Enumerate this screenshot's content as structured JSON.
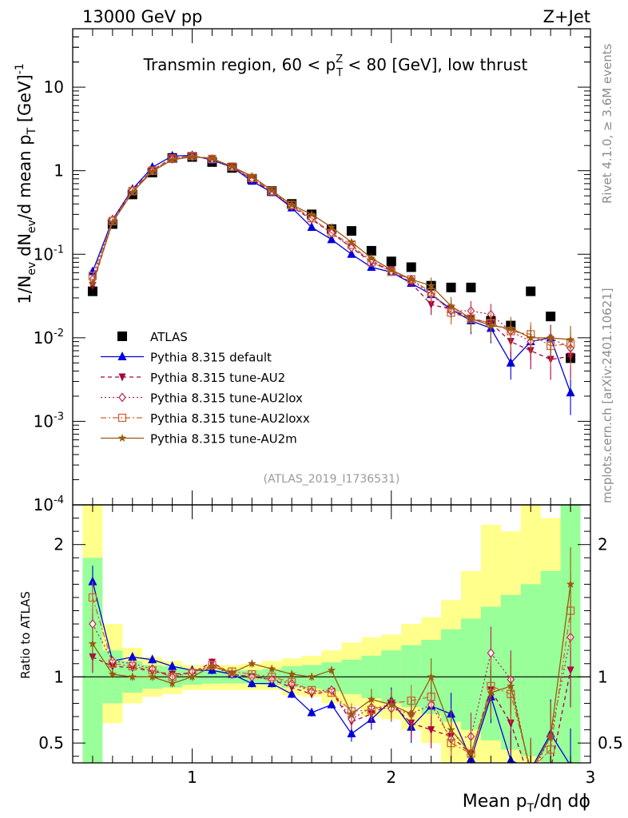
{
  "header": {
    "left_title": "13000 GeV pp",
    "right_title": "Z+Jet",
    "side_label_top": "Rivet 4.1.0, ≥ 3.6M events",
    "side_label_bottom": "mcplots.cern.ch [arXiv:2401.10621]",
    "analysis_id": "(ATLAS_2019_I1736531)"
  },
  "chart_data": [
    {
      "type": "line",
      "title": "Transmin region, 60 < pTZ < 80 [GeV], low thrust",
      "title_parts": {
        "a": "Transmin region, 60 < p",
        "sup": "Z",
        "sub": "T",
        "b": " < 80 [GeV], low thrust"
      },
      "ylabel": "1/Nev dNev/d mean pT [GeV]-1",
      "ylabel_parts": {
        "p1": "1/N",
        "s1": "ev",
        "p2": " dN",
        "s2": "ev",
        "p3": "/d mean p",
        "s3": "T",
        "p4": " [GeV]",
        "s4": "-1"
      },
      "yscale": "log",
      "ylim": [
        0.0001,
        50
      ],
      "xlim": [
        0.4,
        3.0
      ],
      "yticks": [
        {
          "v": 0.0001,
          "label": "10",
          "exp": "-4"
        },
        {
          "v": 0.001,
          "label": "10",
          "exp": "-3"
        },
        {
          "v": 0.01,
          "label": "10",
          "exp": "-2"
        },
        {
          "v": 0.1,
          "label": "10",
          "exp": "-1"
        },
        {
          "v": 1,
          "label": "1",
          "exp": ""
        },
        {
          "v": 10,
          "label": "10",
          "exp": ""
        }
      ],
      "x": [
        0.5,
        0.6,
        0.7,
        0.8,
        0.9,
        1.0,
        1.1,
        1.2,
        1.3,
        1.4,
        1.5,
        1.6,
        1.7,
        1.8,
        1.9,
        2.0,
        2.1,
        2.2,
        2.3,
        2.4,
        2.5,
        2.6,
        2.7,
        2.8,
        2.9
      ],
      "series": [
        {
          "name": "ATLAS",
          "color": "#000000",
          "marker": "square",
          "dash": "",
          "values": [
            0.036,
            0.23,
            0.52,
            0.95,
            1.42,
            1.46,
            1.27,
            1.08,
            0.8,
            0.57,
            0.4,
            0.3,
            0.2,
            0.19,
            0.11,
            0.082,
            0.07,
            0.042,
            0.04,
            0.04,
            0.016,
            0.014,
            0.036,
            0.018,
            0.0057
          ]
        },
        {
          "name": "Pythia 8.315 default",
          "color": "#0000dd",
          "marker": "triangle",
          "dash": "",
          "values": [
            0.062,
            0.26,
            0.6,
            1.1,
            1.5,
            1.52,
            1.34,
            1.1,
            0.75,
            0.55,
            0.36,
            0.21,
            0.15,
            0.1,
            0.07,
            0.061,
            0.045,
            0.033,
            0.022,
            0.016,
            0.013,
            0.005,
            0.009,
            0.01,
            0.0022
          ]
        },
        {
          "name": "Pythia 8.315 tune-AU2",
          "color": "#aa0044",
          "marker": "triangle-down",
          "dash": "5,4",
          "values": [
            0.042,
            0.25,
            0.58,
            1.02,
            1.42,
            1.5,
            1.4,
            1.1,
            0.8,
            0.55,
            0.37,
            0.26,
            0.18,
            0.12,
            0.08,
            0.065,
            0.045,
            0.025,
            0.022,
            0.017,
            0.015,
            0.009,
            0.007,
            0.0055,
            0.006
          ]
        },
        {
          "name": "Pythia 8.315 tune-AU2lox",
          "color": "#bb2255",
          "marker": "diamond",
          "dash": "2,3",
          "values": [
            0.05,
            0.26,
            0.58,
            1.0,
            1.38,
            1.48,
            1.38,
            1.1,
            0.8,
            0.56,
            0.38,
            0.27,
            0.18,
            0.12,
            0.085,
            0.062,
            0.05,
            0.033,
            0.021,
            0.021,
            0.019,
            0.012,
            0.009,
            0.01,
            0.0075
          ]
        },
        {
          "name": "Pythia 8.315 tune-AU2loxx",
          "color": "#cc6633",
          "marker": "square-open",
          "dash": "7,3,2,3",
          "values": [
            0.055,
            0.25,
            0.57,
            1.0,
            1.4,
            1.5,
            1.38,
            1.12,
            0.82,
            0.57,
            0.39,
            0.27,
            0.18,
            0.13,
            0.08,
            0.062,
            0.05,
            0.035,
            0.02,
            0.017,
            0.015,
            0.012,
            0.011,
            0.008,
            0.0085
          ]
        },
        {
          "name": "Pythia 8.315 tune-AU2m",
          "color": "#9a5a10",
          "marker": "star",
          "dash": "",
          "values": [
            0.045,
            0.24,
            0.55,
            0.98,
            1.35,
            1.47,
            1.4,
            1.12,
            0.86,
            0.58,
            0.39,
            0.3,
            0.21,
            0.14,
            0.09,
            0.065,
            0.05,
            0.042,
            0.024,
            0.017,
            0.014,
            0.013,
            0.01,
            0.01,
            0.0095
          ]
        }
      ]
    },
    {
      "type": "line",
      "ylabel": "Ratio to ATLAS",
      "xlabel": "Mean pT/dη dϕ",
      "xlabel_parts": {
        "a": "Mean p",
        "sub": "T",
        "b": "/dη dϕ"
      },
      "ylim": [
        0.35,
        2.3
      ],
      "xlim": [
        0.4,
        3.0
      ],
      "yticks": [
        0.5,
        1,
        2
      ],
      "xticks": [
        1,
        2,
        3
      ],
      "band_x": [
        0.45,
        0.55,
        0.65,
        0.75,
        0.85,
        0.95,
        1.05,
        1.15,
        1.25,
        1.35,
        1.45,
        1.55,
        1.65,
        1.75,
        1.85,
        1.95,
        2.05,
        2.15,
        2.25,
        2.35,
        2.45,
        2.55,
        2.65,
        2.75,
        2.85,
        2.95
      ],
      "band_yellow": [
        [
          0.3,
          2.5
        ],
        [
          0.65,
          1.4
        ],
        [
          0.8,
          1.22
        ],
        [
          0.85,
          1.15
        ],
        [
          0.87,
          1.12
        ],
        [
          0.9,
          1.09
        ],
        [
          0.9,
          1.09
        ],
        [
          0.9,
          1.09
        ],
        [
          0.9,
          1.1
        ],
        [
          0.9,
          1.12
        ],
        [
          0.86,
          1.14
        ],
        [
          0.85,
          1.16
        ],
        [
          0.8,
          1.2
        ],
        [
          0.78,
          1.26
        ],
        [
          0.7,
          1.3
        ],
        [
          0.68,
          1.32
        ],
        [
          0.6,
          1.4
        ],
        [
          0.5,
          1.45
        ],
        [
          0.35,
          1.58
        ],
        [
          0.3,
          1.8
        ],
        [
          0.3,
          2.15
        ],
        [
          0.3,
          2.1
        ],
        [
          0.3,
          2.4
        ],
        [
          0.3,
          2.2
        ],
        [
          0.3,
          2.2
        ]
      ],
      "band_green": [
        [
          0.35,
          1.9
        ],
        [
          0.8,
          1.2
        ],
        [
          0.88,
          1.12
        ],
        [
          0.91,
          1.09
        ],
        [
          0.92,
          1.08
        ],
        [
          0.94,
          1.06
        ],
        [
          0.95,
          1.05
        ],
        [
          0.95,
          1.05
        ],
        [
          0.95,
          1.05
        ],
        [
          0.94,
          1.06
        ],
        [
          0.92,
          1.08
        ],
        [
          0.91,
          1.09
        ],
        [
          0.89,
          1.11
        ],
        [
          0.87,
          1.13
        ],
        [
          0.84,
          1.16
        ],
        [
          0.8,
          1.2
        ],
        [
          0.77,
          1.24
        ],
        [
          0.72,
          1.28
        ],
        [
          0.66,
          1.36
        ],
        [
          0.6,
          1.44
        ],
        [
          0.52,
          1.53
        ],
        [
          0.45,
          1.62
        ],
        [
          0.4,
          1.7
        ],
        [
          0.35,
          1.8
        ],
        [
          0.33,
          2.3
        ]
      ],
      "series": [
        {
          "name": "Pythia 8.315 default",
          "color": "#0000dd",
          "marker": "triangle",
          "dash": "",
          "values": [
            1.72,
            1.12,
            1.15,
            1.13,
            1.08,
            1.05,
            1.05,
            1.02,
            0.95,
            0.95,
            0.87,
            0.73,
            0.79,
            0.57,
            0.68,
            0.82,
            0.62,
            0.78,
            0.72,
            0.38,
            0.85,
            0.37,
            0.3,
            0.57,
            0.33
          ]
        },
        {
          "name": "Pythia 8.315 tune-AU2",
          "color": "#aa0044",
          "marker": "triangle-down",
          "dash": "5,4",
          "values": [
            1.15,
            1.08,
            1.07,
            1.04,
            1.02,
            1.03,
            1.11,
            1.02,
            1.0,
            0.98,
            0.92,
            0.87,
            0.89,
            0.66,
            0.72,
            0.8,
            0.65,
            0.6,
            0.55,
            0.42,
            0.9,
            0.65,
            0.2,
            0.3,
            1.05
          ]
        },
        {
          "name": "Pythia 8.315 tune-AU2lox",
          "color": "#bb2255",
          "marker": "diamond",
          "dash": "2,3",
          "values": [
            1.4,
            1.12,
            1.1,
            1.06,
            1.0,
            1.04,
            1.08,
            1.02,
            1.0,
            0.98,
            0.95,
            0.89,
            0.9,
            0.68,
            0.77,
            0.76,
            0.72,
            0.79,
            0.53,
            0.55,
            1.18,
            0.98,
            0.25,
            0.55,
            1.3
          ]
        },
        {
          "name": "Pythia 8.315 tune-AU2loxx",
          "color": "#cc6633",
          "marker": "square-open",
          "dash": "7,3,2,3",
          "values": [
            1.6,
            1.1,
            1.08,
            1.05,
            1.0,
            1.03,
            1.09,
            1.04,
            1.02,
            1.0,
            0.96,
            0.9,
            0.88,
            0.74,
            0.75,
            0.8,
            0.82,
            0.85,
            0.5,
            0.42,
            0.93,
            0.87,
            0.3,
            0.45,
            1.5
          ]
        },
        {
          "name": "Pythia 8.315 tune-AU2m",
          "color": "#9a5a10",
          "marker": "star",
          "dash": "",
          "values": [
            1.25,
            1.02,
            1.0,
            1.0,
            0.95,
            1.0,
            1.08,
            1.03,
            1.1,
            1.06,
            1.02,
            1.0,
            1.05,
            0.72,
            0.83,
            0.79,
            0.72,
            1.0,
            0.6,
            0.42,
            0.88,
            0.93,
            0.28,
            0.55,
            1.7
          ]
        }
      ]
    }
  ]
}
